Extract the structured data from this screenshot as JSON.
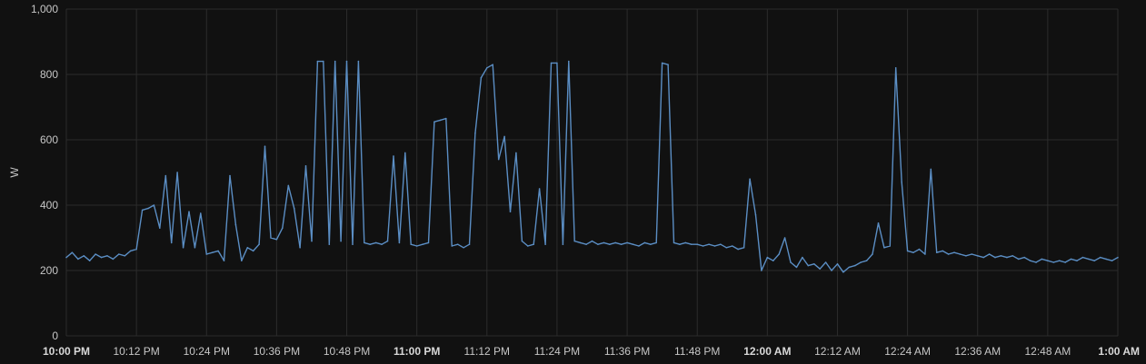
{
  "chart_data": {
    "type": "line",
    "title": "",
    "xlabel": "",
    "ylabel": "W",
    "ylim": [
      0,
      1000
    ],
    "xlim": [
      "10:00 PM",
      "1:00 AM"
    ],
    "y_ticks": [
      {
        "value": 0,
        "label": "0"
      },
      {
        "value": 200,
        "label": "200"
      },
      {
        "value": 400,
        "label": "400"
      },
      {
        "value": 600,
        "label": "600"
      },
      {
        "value": 800,
        "label": "800"
      },
      {
        "value": 1000,
        "label": "1,000"
      }
    ],
    "x_ticks": [
      {
        "minute": 0,
        "label": "10:00 PM",
        "bold": true
      },
      {
        "minute": 12,
        "label": "10:12 PM",
        "bold": false
      },
      {
        "minute": 24,
        "label": "10:24 PM",
        "bold": false
      },
      {
        "minute": 36,
        "label": "10:36 PM",
        "bold": false
      },
      {
        "minute": 48,
        "label": "10:48 PM",
        "bold": false
      },
      {
        "minute": 60,
        "label": "11:00 PM",
        "bold": true
      },
      {
        "minute": 72,
        "label": "11:12 PM",
        "bold": false
      },
      {
        "minute": 84,
        "label": "11:24 PM",
        "bold": false
      },
      {
        "minute": 96,
        "label": "11:36 PM",
        "bold": false
      },
      {
        "minute": 108,
        "label": "11:48 PM",
        "bold": false
      },
      {
        "minute": 120,
        "label": "12:00 AM",
        "bold": true
      },
      {
        "minute": 132,
        "label": "12:12 AM",
        "bold": false
      },
      {
        "minute": 144,
        "label": "12:24 AM",
        "bold": false
      },
      {
        "minute": 156,
        "label": "12:36 AM",
        "bold": false
      },
      {
        "minute": 168,
        "label": "12:48 AM",
        "bold": false
      },
      {
        "minute": 180,
        "label": "1:00 AM",
        "bold": true
      }
    ],
    "grid": true,
    "legend": "none",
    "series": [
      {
        "color": "#5b8ec4",
        "x_unit": "minutes after 10:00 PM",
        "points": [
          [
            0,
            240
          ],
          [
            1,
            255
          ],
          [
            2,
            235
          ],
          [
            3,
            245
          ],
          [
            4,
            230
          ],
          [
            5,
            250
          ],
          [
            6,
            240
          ],
          [
            7,
            245
          ],
          [
            8,
            235
          ],
          [
            9,
            250
          ],
          [
            10,
            245
          ],
          [
            11,
            260
          ],
          [
            12,
            265
          ],
          [
            13,
            385
          ],
          [
            14,
            390
          ],
          [
            15,
            400
          ],
          [
            16,
            330
          ],
          [
            17,
            490
          ],
          [
            18,
            285
          ],
          [
            19,
            500
          ],
          [
            20,
            270
          ],
          [
            21,
            380
          ],
          [
            22,
            270
          ],
          [
            23,
            375
          ],
          [
            24,
            250
          ],
          [
            25,
            255
          ],
          [
            26,
            260
          ],
          [
            27,
            230
          ],
          [
            28,
            490
          ],
          [
            29,
            340
          ],
          [
            30,
            230
          ],
          [
            31,
            270
          ],
          [
            32,
            260
          ],
          [
            33,
            280
          ],
          [
            34,
            580
          ],
          [
            35,
            300
          ],
          [
            36,
            295
          ],
          [
            37,
            330
          ],
          [
            38,
            460
          ],
          [
            39,
            390
          ],
          [
            40,
            270
          ],
          [
            41,
            520
          ],
          [
            42,
            290
          ],
          [
            43,
            840
          ],
          [
            44,
            840
          ],
          [
            45,
            280
          ],
          [
            46,
            840
          ],
          [
            47,
            290
          ],
          [
            48,
            840
          ],
          [
            49,
            280
          ],
          [
            50,
            840
          ],
          [
            51,
            285
          ],
          [
            52,
            280
          ],
          [
            53,
            285
          ],
          [
            54,
            280
          ],
          [
            55,
            290
          ],
          [
            56,
            550
          ],
          [
            57,
            285
          ],
          [
            58,
            560
          ],
          [
            59,
            280
          ],
          [
            60,
            275
          ],
          [
            61,
            280
          ],
          [
            62,
            285
          ],
          [
            63,
            655
          ],
          [
            64,
            660
          ],
          [
            65,
            665
          ],
          [
            66,
            275
          ],
          [
            67,
            280
          ],
          [
            68,
            270
          ],
          [
            69,
            280
          ],
          [
            70,
            620
          ],
          [
            71,
            790
          ],
          [
            72,
            820
          ],
          [
            73,
            830
          ],
          [
            74,
            540
          ],
          [
            75,
            610
          ],
          [
            76,
            380
          ],
          [
            77,
            560
          ],
          [
            78,
            290
          ],
          [
            79,
            275
          ],
          [
            80,
            280
          ],
          [
            81,
            450
          ],
          [
            82,
            280
          ],
          [
            83,
            835
          ],
          [
            84,
            835
          ],
          [
            85,
            280
          ],
          [
            86,
            840
          ],
          [
            87,
            290
          ],
          [
            88,
            285
          ],
          [
            89,
            280
          ],
          [
            90,
            290
          ],
          [
            91,
            280
          ],
          [
            92,
            285
          ],
          [
            93,
            280
          ],
          [
            94,
            285
          ],
          [
            95,
            280
          ],
          [
            96,
            285
          ],
          [
            97,
            280
          ],
          [
            98,
            275
          ],
          [
            99,
            285
          ],
          [
            100,
            280
          ],
          [
            101,
            285
          ],
          [
            102,
            835
          ],
          [
            103,
            830
          ],
          [
            104,
            285
          ],
          [
            105,
            280
          ],
          [
            106,
            285
          ],
          [
            107,
            280
          ],
          [
            108,
            280
          ],
          [
            109,
            275
          ],
          [
            110,
            280
          ],
          [
            111,
            275
          ],
          [
            112,
            280
          ],
          [
            113,
            270
          ],
          [
            114,
            275
          ],
          [
            115,
            265
          ],
          [
            116,
            270
          ],
          [
            117,
            480
          ],
          [
            118,
            370
          ],
          [
            119,
            200
          ],
          [
            120,
            240
          ],
          [
            121,
            230
          ],
          [
            122,
            250
          ],
          [
            123,
            300
          ],
          [
            124,
            225
          ],
          [
            125,
            210
          ],
          [
            126,
            240
          ],
          [
            127,
            215
          ],
          [
            128,
            220
          ],
          [
            129,
            205
          ],
          [
            130,
            225
          ],
          [
            131,
            200
          ],
          [
            132,
            220
          ],
          [
            133,
            195
          ],
          [
            134,
            210
          ],
          [
            135,
            215
          ],
          [
            136,
            225
          ],
          [
            137,
            230
          ],
          [
            138,
            250
          ],
          [
            139,
            345
          ],
          [
            140,
            270
          ],
          [
            141,
            275
          ],
          [
            142,
            820
          ],
          [
            143,
            470
          ],
          [
            144,
            260
          ],
          [
            145,
            255
          ],
          [
            146,
            265
          ],
          [
            147,
            250
          ],
          [
            148,
            510
          ],
          [
            149,
            255
          ],
          [
            150,
            260
          ],
          [
            151,
            250
          ],
          [
            152,
            255
          ],
          [
            153,
            250
          ],
          [
            154,
            245
          ],
          [
            155,
            250
          ],
          [
            156,
            245
          ],
          [
            157,
            240
          ],
          [
            158,
            250
          ],
          [
            159,
            240
          ],
          [
            160,
            245
          ],
          [
            161,
            240
          ],
          [
            162,
            245
          ],
          [
            163,
            235
          ],
          [
            164,
            240
          ],
          [
            165,
            230
          ],
          [
            166,
            225
          ],
          [
            167,
            235
          ],
          [
            168,
            230
          ],
          [
            169,
            225
          ],
          [
            170,
            230
          ],
          [
            171,
            225
          ],
          [
            172,
            235
          ],
          [
            173,
            230
          ],
          [
            174,
            240
          ],
          [
            175,
            235
          ],
          [
            176,
            230
          ],
          [
            177,
            240
          ],
          [
            178,
            235
          ],
          [
            179,
            230
          ],
          [
            180,
            240
          ]
        ]
      }
    ]
  }
}
